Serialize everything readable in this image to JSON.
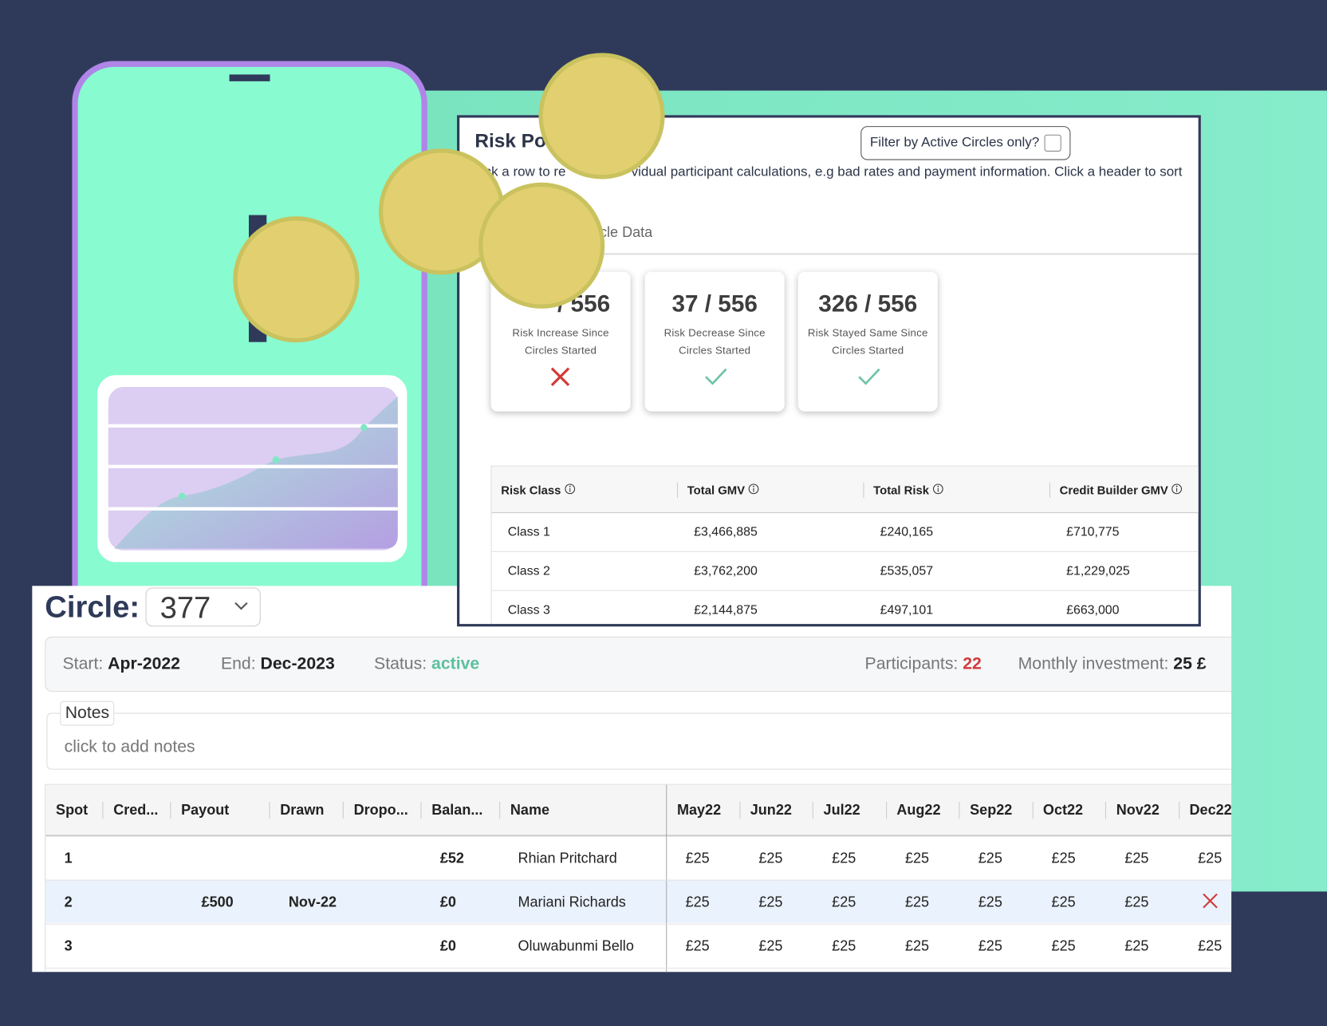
{
  "risk_panel": {
    "title": "Risk Po",
    "subtitle_start": "ick a row to re",
    "subtitle_end": "vidual participant calculations, e.g bad rates and payment information. Click a header to sort",
    "filter_label": "Filter by Active Circles only?",
    "tab": "rcle Data",
    "cards": [
      {
        "count": "/ 556",
        "label": "Risk Increase Since Circles Started"
      },
      {
        "count": "37 / 556",
        "label": "Risk Decrease Since Circles Started"
      },
      {
        "count": "326 / 556",
        "label": "Risk Stayed Same Since Circles Started"
      }
    ],
    "table": {
      "headers": [
        "Risk Class",
        "Total GMV",
        "Total Risk",
        "Credit Builder GMV"
      ],
      "rows": [
        [
          "Class 1",
          "£3,466,885",
          "£240,165",
          "£710,775"
        ],
        [
          "Class 2",
          "£3,762,200",
          "£535,057",
          "£1,229,025"
        ],
        [
          "Class 3",
          "£2,144,875",
          "£497,101",
          "£663,000"
        ]
      ]
    }
  },
  "circle_panel": {
    "label": "Circle:",
    "id": "377",
    "start_label": "Start:",
    "start": "Apr-2022",
    "end_label": "End:",
    "end": "Dec-2023",
    "status_label": "Status:",
    "status": "active",
    "participants_label": "Participants:",
    "participants": "22",
    "investment_label": "Monthly investment:",
    "investment": "25 £",
    "notes_label": "Notes",
    "notes_placeholder": "click to add notes",
    "grid": {
      "headers": [
        "Spot",
        "Cred...",
        "Payout",
        "Drawn",
        "Dropo...",
        "Balan...",
        "Name"
      ],
      "month_headers": [
        "May22",
        "Jun22",
        "Jul22",
        "Aug22",
        "Sep22",
        "Oct22",
        "Nov22",
        "Dec22"
      ],
      "rows": [
        {
          "spot": "1",
          "balance": "£52",
          "name": "Rhian Pritchard",
          "months": [
            "£25",
            "£25",
            "£25",
            "£25",
            "£25",
            "£25",
            "£25",
            "£25"
          ]
        },
        {
          "spot": "2",
          "payout": "£500",
          "drawn": "Nov-22",
          "balance": "£0",
          "name": "Mariani Richards",
          "months": [
            "£25",
            "£25",
            "£25",
            "£25",
            "£25",
            "£25",
            "£25",
            null
          ]
        },
        {
          "spot": "3",
          "balance": "£0",
          "name": "Oluwabunmi Bello",
          "months": [
            "£25",
            "£25",
            "£25",
            "£25",
            "£25",
            "£25",
            "£25",
            "£25"
          ]
        }
      ]
    }
  }
}
